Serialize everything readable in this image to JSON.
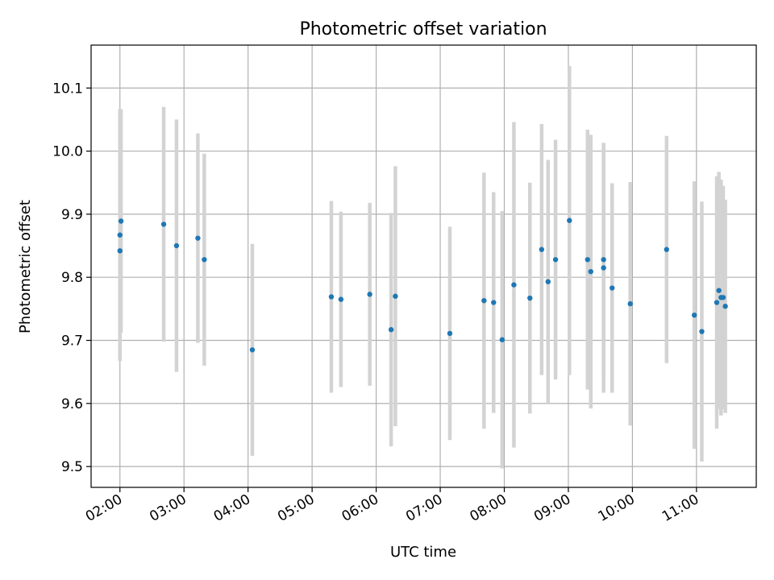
{
  "chart_data": {
    "type": "scatter",
    "title": "Photometric offset variation",
    "xlabel": "UTC time",
    "ylabel": "Photometric offset",
    "x_ticks": [
      "02:00",
      "03:00",
      "04:00",
      "05:00",
      "06:00",
      "07:00",
      "08:00",
      "09:00",
      "10:00",
      "11:00"
    ],
    "y_ticks": [
      "9.5",
      "9.6",
      "9.7",
      "9.8",
      "9.9",
      "10.0",
      "10.1"
    ],
    "xlim": [
      "01:33",
      "11:56"
    ],
    "ylim": [
      9.467,
      10.168
    ],
    "grid": true,
    "colors": {
      "points": "#1f77b4",
      "error_bars": "#d3d3d3",
      "grid": "#b0b0b0"
    },
    "points": [
      {
        "t": "02:00",
        "y": 9.842,
        "err": 0.165
      },
      {
        "t": "02:00",
        "y": 9.867,
        "err": 0.2
      },
      {
        "t": "02:01",
        "y": 9.889,
        "err": 0.177
      },
      {
        "t": "02:41",
        "y": 9.884,
        "err": 0.186
      },
      {
        "t": "02:53",
        "y": 9.85,
        "err": 0.2
      },
      {
        "t": "03:13",
        "y": 9.862,
        "err": 0.166
      },
      {
        "t": "03:19",
        "y": 9.828,
        "err": 0.168
      },
      {
        "t": "04:04",
        "y": 9.685,
        "err": 0.168
      },
      {
        "t": "05:18",
        "y": 9.769,
        "err": 0.152
      },
      {
        "t": "05:27",
        "y": 9.765,
        "err": 0.139
      },
      {
        "t": "05:54",
        "y": 9.773,
        "err": 0.145
      },
      {
        "t": "06:14",
        "y": 9.717,
        "err": 0.185
      },
      {
        "t": "06:18",
        "y": 9.77,
        "err": 0.206
      },
      {
        "t": "07:09",
        "y": 9.711,
        "err": 0.169
      },
      {
        "t": "07:41",
        "y": 9.763,
        "err": 0.203
      },
      {
        "t": "07:50",
        "y": 9.76,
        "err": 0.175
      },
      {
        "t": "07:58",
        "y": 9.701,
        "err": 0.204
      },
      {
        "t": "08:09",
        "y": 9.788,
        "err": 0.258
      },
      {
        "t": "08:24",
        "y": 9.767,
        "err": 0.183
      },
      {
        "t": "08:35",
        "y": 9.844,
        "err": 0.199
      },
      {
        "t": "08:41",
        "y": 9.793,
        "err": 0.193
      },
      {
        "t": "08:48",
        "y": 9.828,
        "err": 0.19
      },
      {
        "t": "09:01",
        "y": 9.89,
        "err": 0.245
      },
      {
        "t": "09:18",
        "y": 9.828,
        "err": 0.206
      },
      {
        "t": "09:21",
        "y": 9.809,
        "err": 0.217
      },
      {
        "t": "09:33",
        "y": 9.828,
        "err": 0.185
      },
      {
        "t": "09:33",
        "y": 9.815,
        "err": 0.198
      },
      {
        "t": "09:41",
        "y": 9.783,
        "err": 0.166
      },
      {
        "t": "09:58",
        "y": 9.758,
        "err": 0.193
      },
      {
        "t": "10:32",
        "y": 9.844,
        "err": 0.18
      },
      {
        "t": "10:58",
        "y": 9.74,
        "err": 0.212
      },
      {
        "t": "11:05",
        "y": 9.714,
        "err": 0.206
      },
      {
        "t": "11:19",
        "y": 9.76,
        "err": 0.2
      },
      {
        "t": "11:21",
        "y": 9.779,
        "err": 0.188
      },
      {
        "t": "11:23",
        "y": 9.768,
        "err": 0.187
      },
      {
        "t": "11:25",
        "y": 9.768,
        "err": 0.177
      },
      {
        "t": "11:27",
        "y": 9.754,
        "err": 0.169
      }
    ]
  }
}
